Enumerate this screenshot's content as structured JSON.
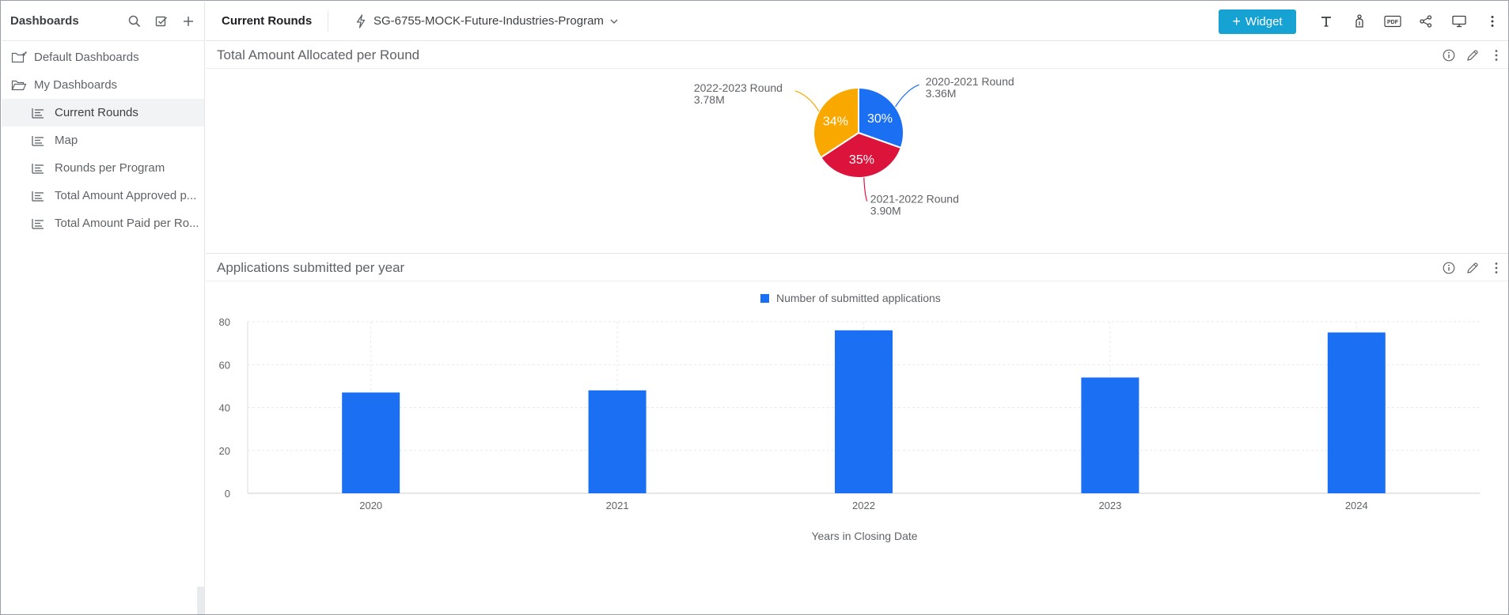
{
  "sidebar": {
    "title": "Dashboards",
    "folders": [
      {
        "label": "Default Dashboards"
      },
      {
        "label": "My Dashboards"
      }
    ],
    "items": [
      {
        "label": "Current Rounds",
        "active": true
      },
      {
        "label": "Map"
      },
      {
        "label": "Rounds per Program"
      },
      {
        "label": "Total Amount Approved p..."
      },
      {
        "label": "Total Amount Paid per Ro..."
      }
    ]
  },
  "topbar": {
    "title": "Current Rounds",
    "datasource": "SG-6755-MOCK-Future-Industries-Program",
    "widget_label": "Widget",
    "accent": "#17a2d4"
  },
  "panels": {
    "pie": {
      "title": "Total Amount Allocated per Round"
    },
    "bar": {
      "title": "Applications submitted per year"
    }
  },
  "chart_data": [
    {
      "type": "pie",
      "title": "Total Amount Allocated per Round",
      "slices": [
        {
          "label": "2020-2021 Round",
          "value_label": "3.36M",
          "value": 3.36,
          "percent_label": "30%",
          "color": "#1a6ff3"
        },
        {
          "label": "2021-2022 Round",
          "value_label": "3.90M",
          "value": 3.9,
          "percent_label": "35%",
          "color": "#dc143c"
        },
        {
          "label": "2022-2023 Round",
          "value_label": "3.78M",
          "value": 3.78,
          "percent_label": "34%",
          "color": "#f9a800"
        }
      ]
    },
    {
      "type": "bar",
      "title": "Applications submitted per year",
      "legend": "Number of submitted applications",
      "legend_position": "top",
      "categories": [
        "2020",
        "2021",
        "2022",
        "2023",
        "2024"
      ],
      "values": [
        47,
        48,
        76,
        54,
        75
      ],
      "ylim": [
        0,
        80
      ],
      "yticks": [
        "0",
        "20",
        "40",
        "60",
        "80"
      ],
      "xlabel": "Years in Closing Date",
      "ylabel": "",
      "grid": true,
      "color": "#1a6ff3"
    }
  ]
}
